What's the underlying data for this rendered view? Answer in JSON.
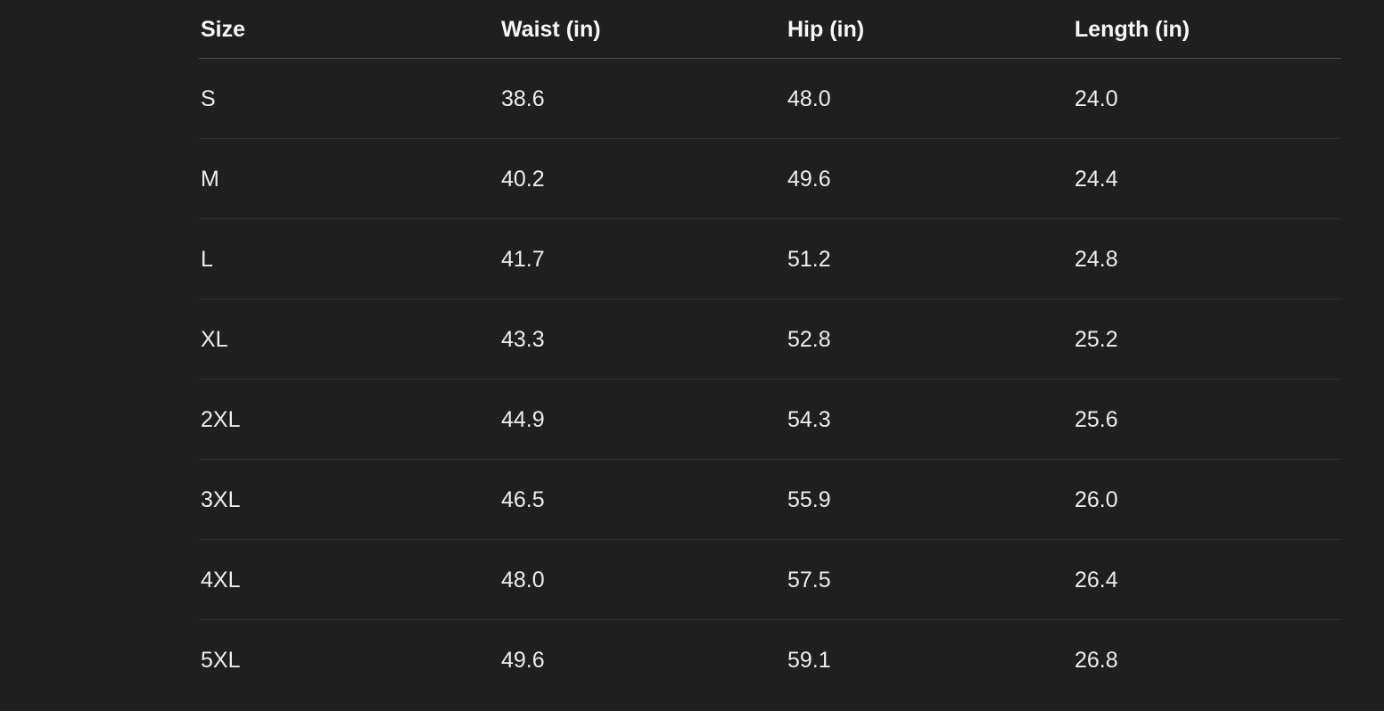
{
  "table": {
    "columns": [
      {
        "label": "Size"
      },
      {
        "label": "Waist (in)"
      },
      {
        "label": "Hip (in)"
      },
      {
        "label": "Length (in)"
      }
    ],
    "rows": [
      {
        "size": "S",
        "waist": "38.6",
        "hip": "48.0",
        "length": "24.0"
      },
      {
        "size": "M",
        "waist": "40.2",
        "hip": "49.6",
        "length": "24.4"
      },
      {
        "size": "L",
        "waist": "41.7",
        "hip": "51.2",
        "length": "24.8"
      },
      {
        "size": "XL",
        "waist": "43.3",
        "hip": "52.8",
        "length": "25.2"
      },
      {
        "size": "2XL",
        "waist": "44.9",
        "hip": "54.3",
        "length": "25.6"
      },
      {
        "size": "3XL",
        "waist": "46.5",
        "hip": "55.9",
        "length": "26.0"
      },
      {
        "size": "4XL",
        "waist": "48.0",
        "hip": "57.5",
        "length": "26.4"
      },
      {
        "size": "5XL",
        "waist": "49.6",
        "hip": "59.1",
        "length": "26.8"
      }
    ],
    "colors": {
      "background": "#1f1f1f",
      "header_border": "#4a4a4a",
      "row_border": "#2f2f2f",
      "header_text": "#f7f7f7",
      "cell_text": "#ededed"
    }
  }
}
